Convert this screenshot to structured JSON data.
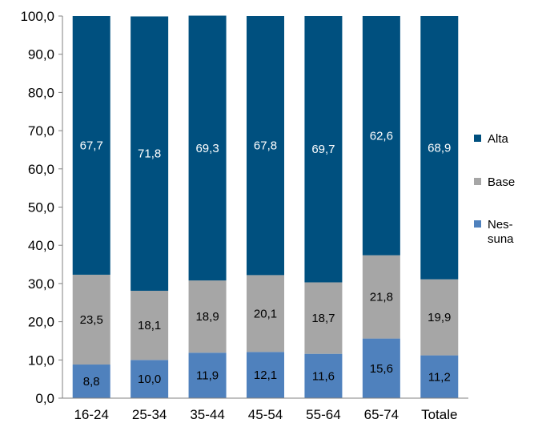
{
  "chart_data": {
    "type": "bar",
    "stacked": true,
    "categories": [
      "16-24",
      "25-34",
      "35-44",
      "45-54",
      "55-64",
      "65-74",
      "Totale"
    ],
    "series": [
      {
        "name": "Nes-suna",
        "legend_lines": [
          "Nes-",
          "suna"
        ],
        "color": "#4f81bd",
        "label_color": "#000000",
        "values": [
          8.8,
          10.0,
          11.9,
          12.1,
          11.6,
          15.6,
          11.2
        ],
        "labels": [
          "8,8",
          "10,0",
          "11,9",
          "12,1",
          "11,6",
          "15,6",
          "11,2"
        ]
      },
      {
        "name": "Base",
        "legend_lines": [
          "Base"
        ],
        "color": "#a6a6a6",
        "label_color": "#000000",
        "values": [
          23.5,
          18.1,
          18.9,
          20.1,
          18.7,
          21.8,
          19.9
        ],
        "labels": [
          "23,5",
          "18,1",
          "18,9",
          "20,1",
          "18,7",
          "21,8",
          "19,9"
        ]
      },
      {
        "name": "Alta",
        "legend_lines": [
          "Alta"
        ],
        "color": "#00507f",
        "label_color": "#ffffff",
        "values": [
          67.7,
          71.8,
          69.3,
          67.8,
          69.7,
          62.6,
          68.9
        ],
        "labels": [
          "67,7",
          "71,8",
          "69,3",
          "67,8",
          "69,7",
          "62,6",
          "68,9"
        ]
      }
    ],
    "legend_order": [
      "Alta",
      "Base",
      "Nes-suna"
    ],
    "ylim": [
      0,
      100
    ],
    "yticks": [
      "0,0",
      "10,0",
      "20,0",
      "30,0",
      "40,0",
      "50,0",
      "60,0",
      "70,0",
      "80,0",
      "90,0",
      "100,0"
    ],
    "grid": false,
    "legend_position": "right",
    "title": "",
    "xlabel": "",
    "ylabel": ""
  }
}
